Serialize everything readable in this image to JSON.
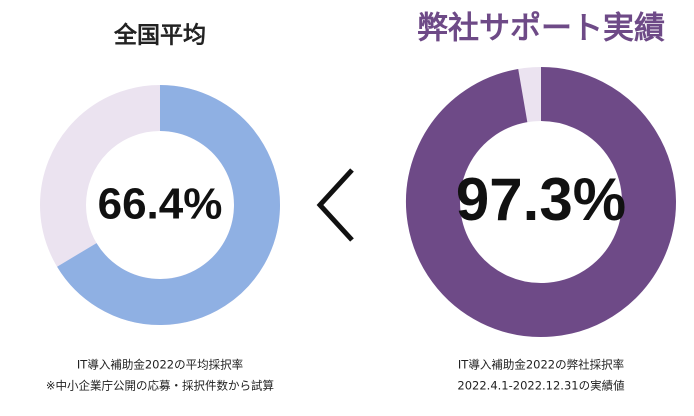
{
  "chart_data": [
    {
      "type": "donut",
      "title": "全国平均",
      "title_color": "#222222",
      "values": [
        66.4
      ],
      "value_labels": [
        "66.4%"
      ],
      "range": [
        0,
        100
      ],
      "color": "#8fb0e3",
      "track_color": "#ebe3f0",
      "notes": [
        "IT導入補助金2022の平均採択率",
        "※中小企業庁公開の応募・採択件数から試算"
      ]
    },
    {
      "type": "donut",
      "title": "弊社サポート実績",
      "title_color": "#6e4a87",
      "values": [
        97.3
      ],
      "value_labels": [
        "97.3%"
      ],
      "range": [
        0,
        100
      ],
      "color": "#6e4a87",
      "track_color": "#ebe3f0",
      "notes": [
        "IT導入補助金2022の弊社採択率",
        "2022.4.1-2022.12.31の実績値"
      ]
    }
  ]
}
